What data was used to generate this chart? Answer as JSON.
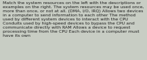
{
  "text": "Match the system resources on the left with the descriptions or\nexamples on the right. The system resources may be used once,\nmore than once, or not at all. (DMA, I/O, IRQ) Allows two devices\nin a computer to send information to each other The method\nused by different system devices to interact with the CPU\nConduits used by high-speed devices to bypass the CPU and\ncommunicate directly with RAM Allows a device to request\nprocessing time from the CPU Each device in a computer must\nhave its own",
  "bg_color": "#c8cdc4",
  "text_color": "#1a1a1a",
  "font_size": 4.5,
  "fig_width": 2.13,
  "fig_height": 0.88,
  "dpi": 100
}
